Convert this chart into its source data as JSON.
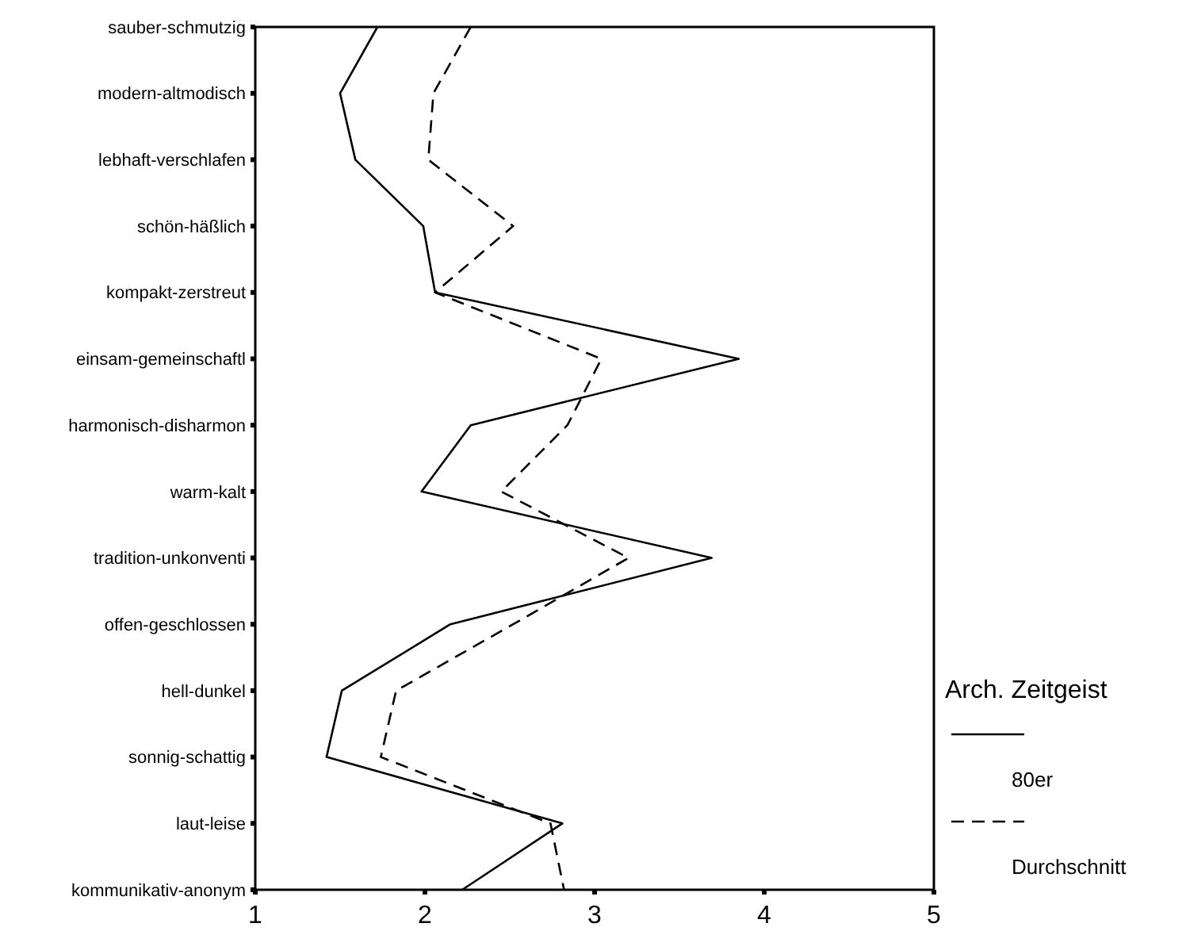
{
  "chart_data": {
    "type": "line",
    "orientation": "horizontal",
    "legend_title": "Arch. Zeitgeist",
    "legend": "right",
    "marker": "none",
    "grid": false,
    "categories": [
      "sauber-schmutzig",
      "modern-altmodisch",
      "lebhaft-verschlafen",
      "schön-häßlich",
      "kompakt-zerstreut",
      "einsam-gemeinschaftl",
      "harmonisch-disharmon",
      "warm-kalt",
      "tradition-unkonventi",
      "offen-geschlossen",
      "hell-dunkel",
      "sonnig-schattig",
      "laut-leise",
      "kommunikativ-anonym"
    ],
    "series": [
      {
        "name": "80er",
        "color": "#000000",
        "line_style": "solid",
        "values": [
          1.72,
          1.5,
          1.59,
          1.99,
          2.06,
          3.85,
          2.27,
          1.98,
          3.69,
          2.15,
          1.51,
          1.42,
          2.81,
          2.22
        ]
      },
      {
        "name": "Durchschnitt",
        "color": "#000000",
        "line_style": "dashed",
        "values": [
          2.27,
          2.05,
          2.02,
          2.52,
          2.06,
          3.04,
          2.84,
          2.45,
          3.2,
          2.52,
          1.83,
          1.74,
          2.74,
          2.82
        ]
      }
    ],
    "xlim": [
      1,
      5
    ],
    "xticks": [
      1,
      2,
      3,
      4,
      5
    ]
  }
}
